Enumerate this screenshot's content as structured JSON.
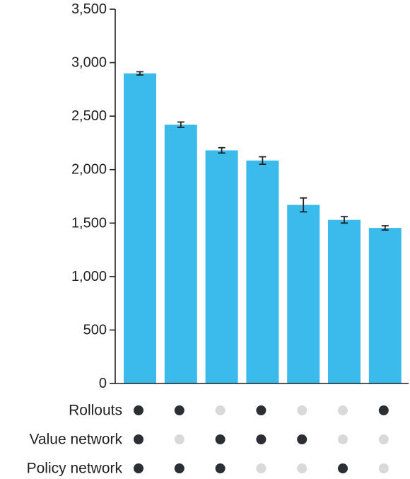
{
  "chart_data": {
    "type": "bar",
    "title": "",
    "xlabel": "",
    "ylabel": "",
    "ylim": [
      0,
      3500
    ],
    "yticks": [
      0,
      500,
      1000,
      1500,
      2000,
      2500,
      3000,
      3500
    ],
    "ytick_labels": [
      "0",
      "500",
      "1,000",
      "1,500",
      "2,000",
      "2,500",
      "3,000",
      "3,500"
    ],
    "values": [
      2900,
      2420,
      2180,
      2085,
      1670,
      1530,
      1455
    ],
    "errors": [
      15,
      25,
      25,
      35,
      65,
      30,
      20
    ],
    "bar_color": "#3bbbeb",
    "error_color": "#222222",
    "grid": false,
    "legend": "none",
    "indicator_rows": [
      {
        "label": "Rollouts",
        "states": [
          1,
          1,
          0,
          1,
          0,
          0,
          1
        ]
      },
      {
        "label": "Value network",
        "states": [
          1,
          0,
          1,
          1,
          1,
          0,
          0
        ]
      },
      {
        "label": "Policy network",
        "states": [
          1,
          1,
          1,
          0,
          0,
          1,
          0
        ]
      }
    ],
    "indicator_on_color": "#2b2e33",
    "indicator_off_color": "#d9d9d9"
  }
}
